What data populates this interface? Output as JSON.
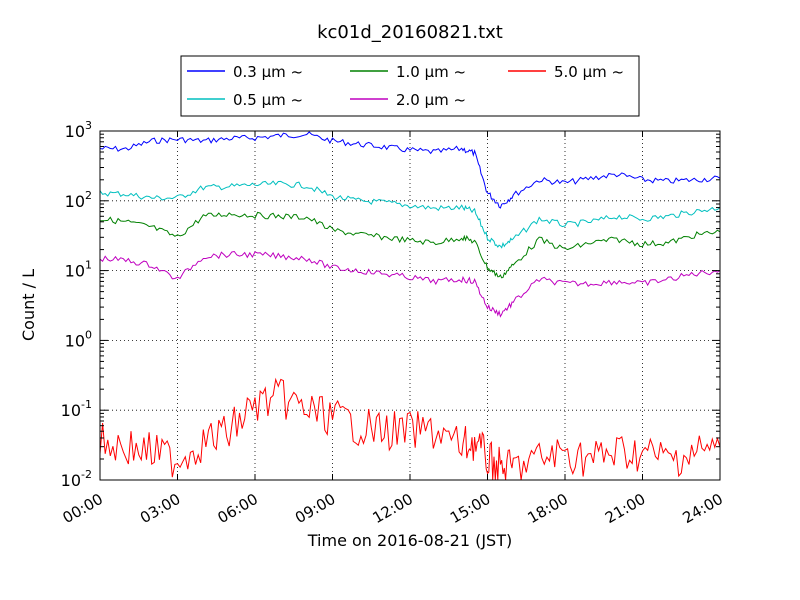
{
  "chart_data": {
    "type": "line",
    "title": "kc01d_20160821.txt",
    "xlabel": "Time on 2016-08-21 (JST)",
    "ylabel": "Count / L",
    "yscale": "log",
    "ylim": [
      0.01,
      1000
    ],
    "xlim": [
      "00:00",
      "24:00"
    ],
    "x_ticks": [
      "00:00",
      "03:00",
      "06:00",
      "09:00",
      "12:00",
      "15:00",
      "18:00",
      "21:00",
      "24:00"
    ],
    "y_ticks": [
      {
        "base": "10",
        "exp": "-2"
      },
      {
        "base": "10",
        "exp": "-1"
      },
      {
        "base": "10",
        "exp": "0"
      },
      {
        "base": "10",
        "exp": "1"
      },
      {
        "base": "10",
        "exp": "2"
      },
      {
        "base": "10",
        "exp": "3"
      }
    ],
    "grid": true,
    "legend_position": "top-center",
    "x": [
      "00:00",
      "01:00",
      "02:00",
      "03:00",
      "04:00",
      "05:00",
      "06:00",
      "07:00",
      "08:00",
      "09:00",
      "10:00",
      "11:00",
      "12:00",
      "13:00",
      "14:00",
      "14:30",
      "15:00",
      "15:30",
      "16:00",
      "17:00",
      "18:00",
      "19:00",
      "20:00",
      "21:00",
      "22:00",
      "23:00",
      "24:00"
    ],
    "series": [
      {
        "name": "0.3 μm ~",
        "color": "#0000ff",
        "values": [
          560,
          550,
          720,
          760,
          720,
          780,
          800,
          860,
          900,
          720,
          650,
          590,
          530,
          500,
          560,
          480,
          130,
          85,
          120,
          200,
          180,
          210,
          240,
          200,
          190,
          200,
          210
        ]
      },
      {
        "name": "0.5 μm ~",
        "color": "#00bfbf",
        "values": [
          130,
          125,
          110,
          110,
          155,
          160,
          170,
          175,
          165,
          115,
          100,
          95,
          85,
          78,
          80,
          70,
          30,
          22,
          28,
          55,
          45,
          50,
          60,
          55,
          60,
          70,
          80
        ]
      },
      {
        "name": "1.0 μm ~",
        "color": "#008000",
        "values": [
          55,
          50,
          42,
          30,
          60,
          65,
          62,
          60,
          58,
          38,
          33,
          30,
          27,
          25,
          30,
          26,
          11,
          8,
          12,
          28,
          20,
          25,
          28,
          24,
          25,
          32,
          36
        ]
      },
      {
        "name": "2.0 μm ~",
        "color": "#bf00bf",
        "values": [
          15,
          14,
          12,
          7.5,
          16,
          17,
          17,
          16,
          15,
          11,
          10,
          9,
          8,
          7,
          7.5,
          7,
          3,
          2.4,
          3.5,
          7.5,
          6.5,
          6.5,
          7,
          6.5,
          7.5,
          9,
          10
        ]
      },
      {
        "name": "5.0 μm ~",
        "color": "#ff0000",
        "values": [
          0.035,
          0.03,
          0.025,
          0.02,
          0.035,
          0.05,
          0.12,
          0.15,
          0.1,
          0.08,
          0.06,
          0.05,
          0.05,
          0.05,
          0.03,
          0.035,
          0.02,
          0.015,
          0.015,
          0.02,
          0.025,
          0.02,
          0.025,
          0.025,
          0.02,
          0.025,
          0.03
        ]
      }
    ]
  }
}
